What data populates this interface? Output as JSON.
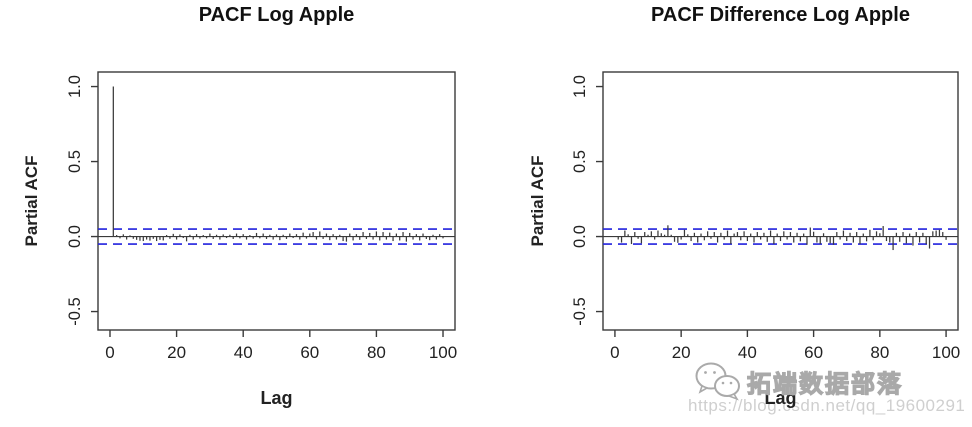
{
  "page": {
    "background": "#ffffff"
  },
  "colors": {
    "axis": "#3a3a3a",
    "spike": "#3a3a3a",
    "tick_label": "#222222",
    "conf_band_blue": "#2222dd",
    "title_text": "#111111",
    "watermark_gray": "#aaaaaa",
    "watermark_url_gray": "#cfcfcf"
  },
  "watermark": {
    "icon": "wechat-icon",
    "brand_text": "拓端数据部落",
    "url_text": "https://blog.csdn.net/qq_19600291"
  },
  "chart_data": [
    {
      "type": "bar",
      "subtype": "pacf-stem-plot",
      "title": "PACF Log Apple",
      "xlabel": "Lag",
      "ylabel": "Partial ACF",
      "x_ticks": [
        0,
        20,
        40,
        60,
        80,
        100
      ],
      "y_ticks": [
        -0.5,
        0.0,
        0.5,
        1.0
      ],
      "y_tick_labels": [
        "-0.5",
        "0.0",
        "0.5",
        "1.0"
      ],
      "xlim": [
        -3.6,
        103.6
      ],
      "ylim": [
        -0.623,
        1.097
      ],
      "grid": false,
      "legend": "none",
      "zero_line": true,
      "conf_bands": [
        0.05,
        -0.05
      ],
      "conf_band_style": "dashed-blue",
      "lag_start": 1,
      "values": [
        1.0,
        0.01,
        -0.012,
        0.015,
        -0.02,
        0.008,
        -0.015,
        -0.022,
        -0.028,
        -0.03,
        -0.02,
        -0.027,
        -0.015,
        -0.03,
        -0.022,
        -0.026,
        0.01,
        -0.015,
        0.018,
        -0.02,
        0.014,
        -0.01,
        -0.032,
        0.012,
        -0.02,
        0.016,
        -0.014,
        0.01,
        -0.012,
        0.02,
        -0.016,
        0.012,
        -0.02,
        0.014,
        -0.01,
        0.012,
        -0.016,
        0.02,
        -0.012,
        0.016,
        -0.02,
        0.01,
        -0.014,
        0.024,
        -0.012,
        0.02,
        -0.016,
        0.012,
        -0.02,
        0.014,
        -0.024,
        0.012,
        -0.016,
        0.02,
        -0.01,
        0.016,
        -0.02,
        0.026,
        -0.014,
        0.02,
        0.03,
        -0.02,
        0.034,
        -0.016,
        0.02,
        -0.024,
        0.016,
        -0.02,
        0.012,
        -0.03,
        -0.034,
        0.02,
        -0.026,
        0.016,
        -0.022,
        0.03,
        -0.016,
        0.024,
        -0.02,
        0.034,
        -0.026,
        0.03,
        -0.02,
        0.026,
        -0.03,
        0.02,
        -0.026,
        0.03,
        -0.034,
        0.024,
        -0.02,
        0.016,
        -0.026,
        0.02,
        -0.016,
        -0.024,
        0.012,
        -0.02,
        0.016,
        -0.012
      ]
    },
    {
      "type": "bar",
      "subtype": "pacf-stem-plot",
      "title": "PACF Difference Log Apple",
      "xlabel": "Lag",
      "ylabel": "Partial ACF",
      "x_ticks": [
        0,
        20,
        40,
        60,
        80,
        100
      ],
      "y_ticks": [
        -0.5,
        0.0,
        0.5,
        1.0
      ],
      "y_tick_labels": [
        "-0.5",
        "0.0",
        "0.5",
        "1.0"
      ],
      "xlim": [
        -3.6,
        103.6
      ],
      "ylim": [
        -0.623,
        1.097
      ],
      "grid": false,
      "legend": "none",
      "zero_line": true,
      "conf_bands": [
        0.05,
        -0.05
      ],
      "conf_band_style": "dashed-blue",
      "lag_start": 1,
      "values": [
        -0.02,
        -0.04,
        0.04,
        0.015,
        -0.05,
        0.03,
        -0.015,
        -0.045,
        0.03,
        0.012,
        0.035,
        -0.02,
        0.04,
        0.022,
        0.012,
        0.075,
        0.012,
        -0.035,
        -0.042,
        -0.02,
        0.045,
        0.015,
        -0.03,
        0.025,
        -0.04,
        0.02,
        -0.025,
        0.035,
        -0.015,
        0.03,
        -0.04,
        0.025,
        -0.02,
        0.04,
        -0.05,
        0.02,
        0.03,
        -0.025,
        0.035,
        -0.03,
        0.02,
        -0.04,
        0.03,
        -0.02,
        0.025,
        -0.035,
        0.04,
        -0.05,
        0.02,
        -0.03,
        0.035,
        -0.02,
        0.03,
        -0.04,
        0.025,
        -0.032,
        0.02,
        -0.055,
        0.06,
        0.032,
        -0.04,
        -0.05,
        0.022,
        -0.035,
        -0.045,
        -0.055,
        0.03,
        -0.02,
        0.04,
        -0.03,
        0.025,
        -0.04,
        0.03,
        -0.05,
        0.02,
        -0.032,
        0.045,
        -0.025,
        0.035,
        0.022,
        0.07,
        -0.03,
        -0.04,
        -0.09,
        0.025,
        -0.035,
        0.03,
        -0.045,
        0.02,
        -0.06,
        0.03,
        -0.04,
        0.025,
        -0.05,
        -0.08,
        0.035,
        0.04,
        0.045,
        0.03,
        -0.022
      ]
    }
  ]
}
